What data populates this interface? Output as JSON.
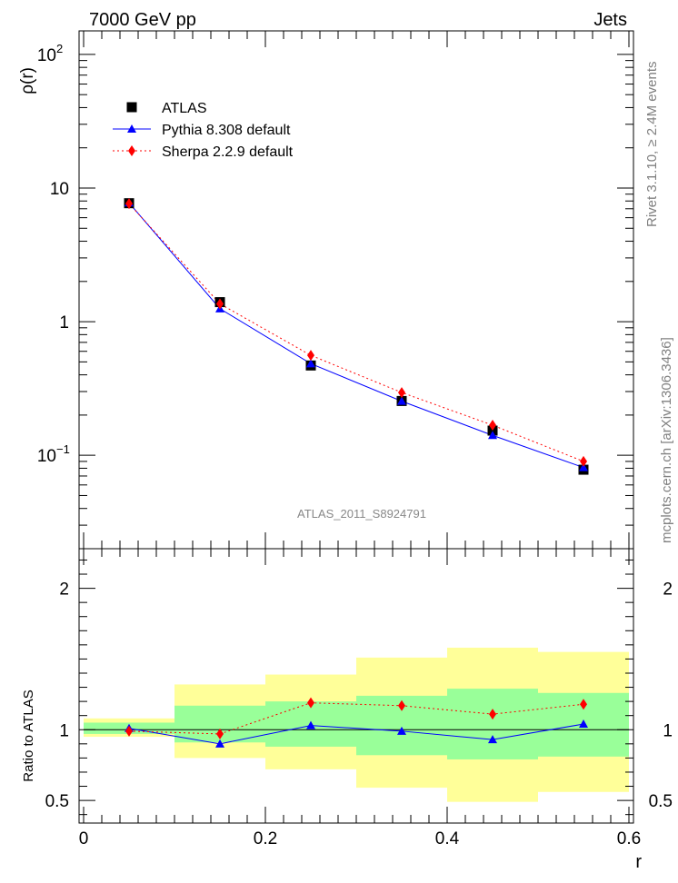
{
  "header": {
    "left_label": "7000 GeV pp",
    "right_label": "Jets"
  },
  "side_labels": {
    "rivet": "Rivet 3.1.10, ≥ 2.4M events",
    "mcplots": "mcplots.cern.ch [arXiv:1306.3436]"
  },
  "analysis_label": "ATLAS_2011_S8924791",
  "chart_data": [
    {
      "type": "scatter",
      "panel": "main",
      "ylabel": "ρ(r)",
      "xlabel": "",
      "xlim": [
        -0.005,
        0.605
      ],
      "ylim": [
        0.02,
        150
      ],
      "yscale": "log",
      "yticks": [
        {
          "value": 0.1,
          "base": "10",
          "exp": "−1"
        },
        {
          "value": 1,
          "base": "1",
          "exp": ""
        },
        {
          "value": 10,
          "base": "10",
          "exp": ""
        },
        {
          "value": 100,
          "base": "10",
          "exp": "2"
        }
      ],
      "legend_position": "top-left",
      "x": [
        0.05,
        0.15,
        0.25,
        0.35,
        0.45,
        0.55
      ],
      "series": [
        {
          "name": "ATLAS",
          "color": "#000000",
          "marker": "square",
          "line": "none",
          "values": [
            7.7,
            1.4,
            0.47,
            0.255,
            0.153,
            0.078
          ]
        },
        {
          "name": "Pythia 8.308 default",
          "color": "#0000ff",
          "marker": "triangle",
          "line": "solid",
          "values": [
            7.75,
            1.25,
            0.485,
            0.254,
            0.141,
            0.081
          ]
        },
        {
          "name": "Sherpa 2.2.9 default",
          "color": "#ff0000",
          "marker": "diamond",
          "line": "dotted",
          "values": [
            7.65,
            1.36,
            0.56,
            0.295,
            0.168,
            0.09
          ]
        }
      ]
    },
    {
      "type": "line",
      "panel": "ratio",
      "ylabel": "Ratio to ATLAS",
      "xlabel": "r",
      "xlim": [
        -0.005,
        0.605
      ],
      "ylim": [
        0.34,
        2.28
      ],
      "xticks": [
        0,
        0.2,
        0.4,
        0.6
      ],
      "xtick_labels": [
        "0",
        "0.2",
        "0.4",
        "0.6"
      ],
      "yticks": [
        0.5,
        1,
        2
      ],
      "ytick_labels": [
        "0.5",
        "1",
        "2"
      ],
      "bands": {
        "bin_edges": [
          0,
          0.1,
          0.2,
          0.3,
          0.4,
          0.5,
          0.6
        ],
        "inner": {
          "color": "#99ff99",
          "low": [
            0.97,
            0.91,
            0.88,
            0.82,
            0.79,
            0.81
          ],
          "high": [
            1.05,
            1.17,
            1.2,
            1.24,
            1.29,
            1.26
          ]
        },
        "outer": {
          "color": "#ffff99",
          "low": [
            0.95,
            0.8,
            0.72,
            0.59,
            0.49,
            0.56
          ],
          "high": [
            1.08,
            1.32,
            1.39,
            1.51,
            1.58,
            1.55
          ]
        }
      },
      "reference": 1.0,
      "x": [
        0.05,
        0.15,
        0.25,
        0.35,
        0.45,
        0.55
      ],
      "series": [
        {
          "name": "Pythia 8.308 default",
          "color": "#0000ff",
          "marker": "triangle",
          "line": "solid",
          "values": [
            1.01,
            0.9,
            1.03,
            0.99,
            0.93,
            1.04
          ]
        },
        {
          "name": "Sherpa 2.2.9 default",
          "color": "#ff0000",
          "marker": "diamond",
          "line": "dotted",
          "values": [
            0.99,
            0.97,
            1.19,
            1.17,
            1.11,
            1.18
          ]
        }
      ]
    }
  ]
}
